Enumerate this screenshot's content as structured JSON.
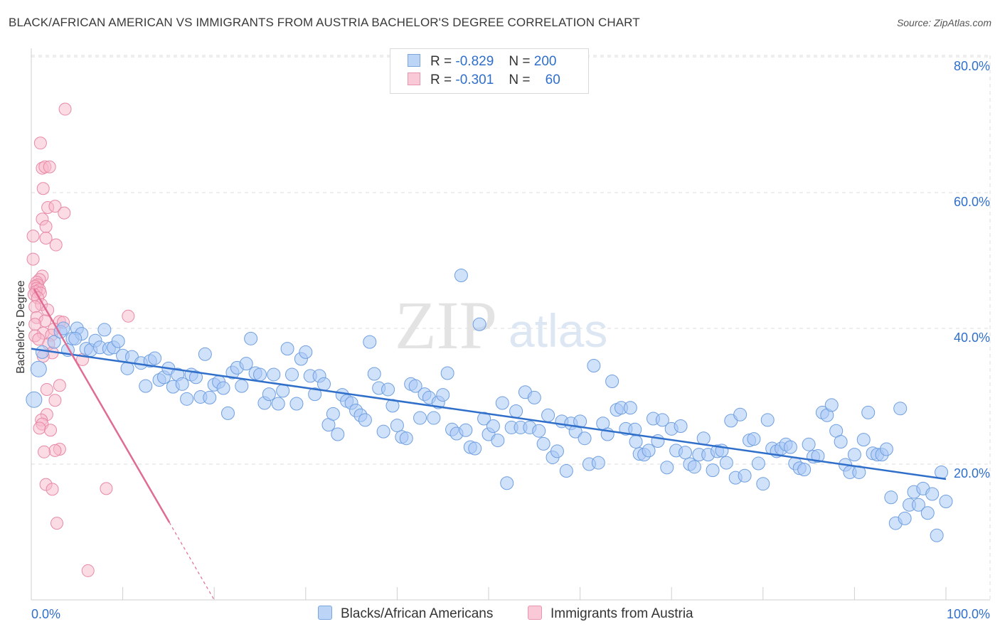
{
  "title": "BLACK/AFRICAN AMERICAN VS IMMIGRANTS FROM AUSTRIA BACHELOR'S DEGREE CORRELATION CHART",
  "source": "Source: ZipAtlas.com",
  "watermark": {
    "zip": "ZIP",
    "atlas": "atlas"
  },
  "legend": {
    "rows": [
      {
        "r_label": "R =",
        "r_value": "-0.829",
        "n_label": "N =",
        "n_value": "200",
        "color": "#a9c9f5"
      },
      {
        "r_label": "R =",
        "r_value": "-0.301",
        "n_label": "N =",
        "n_value": "60",
        "color": "#f7b7c9"
      }
    ]
  },
  "bottom_legend": [
    "Blacks/African Americans",
    "Immigrants from Austria"
  ],
  "colors": {
    "blue_fill": "#a9c9f5",
    "blue_stroke": "#6f9fdf",
    "blue_line": "#2f6fca",
    "pink_fill": "#f7b7c9",
    "pink_stroke": "#e889a6",
    "pink_line": "#e06c93",
    "grid": "#dddddd",
    "axis_text": "#2f6fca"
  },
  "chart_data": {
    "type": "scatter",
    "title": "BLACK/AFRICAN AMERICAN VS IMMIGRANTS FROM AUSTRIA BACHELOR'S DEGREE CORRELATION CHART",
    "xlabel": "",
    "ylabel": "Bachelor's Degree",
    "xlim": [
      0,
      100
    ],
    "ylim": [
      0,
      82
    ],
    "x_tick_labels": [
      "0.0%",
      "100.0%"
    ],
    "y_ticks": [
      20,
      40,
      60,
      80
    ],
    "y_tick_labels": [
      "20.0%",
      "40.0%",
      "60.0%",
      "80.0%"
    ],
    "grid": true,
    "legend_position": "top-center",
    "series": [
      {
        "name": "Blacks/African Americans",
        "color": "#a9c9f5",
        "r": -0.829,
        "n": 200,
        "trend": {
          "x": [
            0,
            100
          ],
          "y": [
            37.0,
            17.8
          ]
        },
        "points": [
          [
            0.3,
            29.5
          ],
          [
            0.8,
            34
          ],
          [
            1.2,
            36.5
          ],
          [
            2.5,
            38
          ],
          [
            3.2,
            39.5
          ],
          [
            3.5,
            40
          ],
          [
            4,
            36.8
          ],
          [
            4.5,
            38.5
          ],
          [
            5,
            40
          ],
          [
            5.5,
            39.2
          ],
          [
            6,
            37
          ],
          [
            6.5,
            36.8
          ],
          [
            7,
            38.2
          ],
          [
            7.5,
            37.2
          ],
          [
            8,
            39.8
          ],
          [
            8.5,
            37
          ],
          [
            9,
            37.2
          ],
          [
            9.5,
            38.1
          ],
          [
            10,
            36
          ],
          [
            10.5,
            34.1
          ],
          [
            11,
            35.8
          ],
          [
            12,
            34.9
          ],
          [
            12.5,
            31.5
          ],
          [
            13,
            35.2
          ],
          [
            13.5,
            35.6
          ],
          [
            14,
            32.4
          ],
          [
            14.5,
            32.8
          ],
          [
            15,
            34.1
          ],
          [
            15.5,
            31.4
          ],
          [
            16,
            33.2
          ],
          [
            16.5,
            31.8
          ],
          [
            17,
            29.6
          ],
          [
            17.5,
            33.2
          ],
          [
            18,
            32.8
          ],
          [
            18.5,
            29.9
          ],
          [
            19,
            36.2
          ],
          [
            19.5,
            29.8
          ],
          [
            20,
            31.7
          ],
          [
            20.5,
            32.1
          ],
          [
            21,
            31.2
          ],
          [
            21.5,
            27.5
          ],
          [
            22,
            33.5
          ],
          [
            22.5,
            34.2
          ],
          [
            23,
            31.5
          ],
          [
            23.5,
            34.8
          ],
          [
            24,
            38.5
          ],
          [
            24.5,
            33.4
          ],
          [
            25,
            33.2
          ],
          [
            25.5,
            29
          ],
          [
            26,
            30.3
          ],
          [
            26.5,
            33.2
          ],
          [
            27,
            28.9
          ],
          [
            27.5,
            30.8
          ],
          [
            28,
            37
          ],
          [
            28.5,
            33.2
          ],
          [
            29,
            28.9
          ],
          [
            29.5,
            35.5
          ],
          [
            30,
            36.5
          ],
          [
            30.5,
            33
          ],
          [
            31,
            30.3
          ],
          [
            31.5,
            33
          ],
          [
            32,
            31.8
          ],
          [
            32.5,
            25.8
          ],
          [
            33,
            27.4
          ],
          [
            33.5,
            24.4
          ],
          [
            34,
            30.2
          ],
          [
            34.5,
            29.3
          ],
          [
            35,
            29
          ],
          [
            35.5,
            27.9
          ],
          [
            36,
            27.2
          ],
          [
            36.5,
            26.5
          ],
          [
            37,
            38
          ],
          [
            37.5,
            33.3
          ],
          [
            38,
            31.2
          ],
          [
            38.5,
            24.8
          ],
          [
            39,
            31
          ],
          [
            39.5,
            28.6
          ],
          [
            40,
            25.7
          ],
          [
            40.5,
            24
          ],
          [
            41,
            23.8
          ],
          [
            41.5,
            31.8
          ],
          [
            42,
            31.5
          ],
          [
            42.5,
            26.8
          ],
          [
            43,
            30.3
          ],
          [
            43.5,
            29.8
          ],
          [
            44,
            26.8
          ],
          [
            44.5,
            29.1
          ],
          [
            45,
            30.2
          ],
          [
            45.5,
            33.4
          ],
          [
            46,
            25.1
          ],
          [
            46.5,
            24.5
          ],
          [
            47,
            47.8
          ],
          [
            47.5,
            25
          ],
          [
            48,
            22.5
          ],
          [
            48.5,
            22.3
          ],
          [
            49,
            40.6
          ],
          [
            49.5,
            26.7
          ],
          [
            50,
            24.4
          ],
          [
            50.5,
            25.6
          ],
          [
            51,
            23.5
          ],
          [
            51.5,
            29
          ],
          [
            52,
            17.2
          ],
          [
            52.5,
            25.4
          ],
          [
            53,
            27.8
          ],
          [
            53.5,
            25.4
          ],
          [
            54,
            30.6
          ],
          [
            54.5,
            25.4
          ],
          [
            55,
            29.8
          ],
          [
            55.5,
            24.9
          ],
          [
            56,
            23
          ],
          [
            56.5,
            27.2
          ],
          [
            57,
            21
          ],
          [
            57.5,
            21.9
          ],
          [
            58,
            26.3
          ],
          [
            58.5,
            19
          ],
          [
            59,
            26
          ],
          [
            59.5,
            24.8
          ],
          [
            60,
            26.3
          ],
          [
            60.5,
            23.8
          ],
          [
            61,
            20
          ],
          [
            61.5,
            34.5
          ],
          [
            62,
            20.2
          ],
          [
            62.5,
            26
          ],
          [
            63,
            24.4
          ],
          [
            63.5,
            32.2
          ],
          [
            64,
            28
          ],
          [
            64.5,
            28.3
          ],
          [
            65,
            25.2
          ],
          [
            65.5,
            28.3
          ],
          [
            66,
            25.1
          ],
          [
            66.5,
            21.5
          ],
          [
            67,
            21.4
          ],
          [
            67.5,
            22
          ],
          [
            68,
            26.7
          ],
          [
            68.5,
            23.4
          ],
          [
            69,
            26.5
          ],
          [
            69.5,
            19.5
          ],
          [
            70,
            25.2
          ],
          [
            70.5,
            22
          ],
          [
            71,
            25.6
          ],
          [
            71.5,
            21.7
          ],
          [
            72,
            20
          ],
          [
            72.5,
            19.6
          ],
          [
            73,
            21.4
          ],
          [
            73.5,
            23.8
          ],
          [
            74,
            21.4
          ],
          [
            74.5,
            19.1
          ],
          [
            75,
            21.9
          ],
          [
            75.5,
            22
          ],
          [
            76,
            20.2
          ],
          [
            76.5,
            26.4
          ],
          [
            77,
            18
          ],
          [
            77.5,
            27.3
          ],
          [
            78,
            18.3
          ],
          [
            78.5,
            23.5
          ],
          [
            79,
            23.7
          ],
          [
            79.5,
            20.1
          ],
          [
            80,
            17.1
          ],
          [
            80.5,
            26.5
          ],
          [
            81,
            22.3
          ],
          [
            81.5,
            21.9
          ],
          [
            82,
            22.3
          ],
          [
            82.5,
            22.9
          ],
          [
            83,
            22.5
          ],
          [
            83.5,
            20.1
          ],
          [
            84,
            19.4
          ],
          [
            84.5,
            19.2
          ],
          [
            85,
            22.9
          ],
          [
            85.5,
            21.1
          ],
          [
            86,
            21.2
          ],
          [
            86.5,
            27.6
          ],
          [
            87,
            27.2
          ],
          [
            87.5,
            28.7
          ],
          [
            88,
            24.9
          ],
          [
            88.5,
            23.3
          ],
          [
            89,
            19.9
          ],
          [
            89.5,
            18.8
          ],
          [
            90,
            21.4
          ],
          [
            90.5,
            18.8
          ],
          [
            91,
            23.6
          ],
          [
            91.5,
            27.6
          ],
          [
            92,
            21.6
          ],
          [
            92.5,
            21.4
          ],
          [
            93,
            21.4
          ],
          [
            93.5,
            22.2
          ],
          [
            94,
            15.1
          ],
          [
            94.5,
            11.3
          ],
          [
            95,
            28.2
          ],
          [
            95.5,
            12
          ],
          [
            96,
            14
          ],
          [
            96.5,
            15.9
          ],
          [
            97,
            14
          ],
          [
            97.5,
            16.4
          ],
          [
            98,
            12.8
          ],
          [
            98.5,
            15.6
          ],
          [
            99,
            9.5
          ],
          [
            99.5,
            18.8
          ],
          [
            100,
            14.5
          ],
          [
            4.8,
            38.5
          ],
          [
            66.1,
            23.3
          ]
        ]
      },
      {
        "name": "Immigrants from Austria",
        "color": "#f7b7c9",
        "r": -0.301,
        "n": 60,
        "trend": {
          "x": [
            0.3,
            15.1,
            20
          ],
          "y": [
            45.8,
            11.4,
            0.0
          ]
        },
        "points": [
          [
            3.7,
            72.3
          ],
          [
            1.0,
            67.3
          ],
          [
            1.2,
            63.6
          ],
          [
            1.5,
            63.8
          ],
          [
            2.0,
            63.8
          ],
          [
            1.3,
            60.6
          ],
          [
            1.8,
            57.8
          ],
          [
            2.6,
            58
          ],
          [
            3.6,
            57
          ],
          [
            1.2,
            56.1
          ],
          [
            1.6,
            55
          ],
          [
            0.2,
            53.6
          ],
          [
            1.6,
            53.3
          ],
          [
            2.7,
            52.3
          ],
          [
            0.2,
            50.2
          ],
          [
            1.2,
            47.7
          ],
          [
            0.9,
            47.2
          ],
          [
            0.6,
            46.8
          ],
          [
            0.7,
            46.4
          ],
          [
            0.4,
            46.2
          ],
          [
            0.6,
            45.9
          ],
          [
            0.9,
            45.7
          ],
          [
            0.5,
            45.4
          ],
          [
            1.0,
            45.2
          ],
          [
            0.3,
            45.0
          ],
          [
            0.7,
            44.5
          ],
          [
            1.1,
            43.5
          ],
          [
            0.4,
            43.2
          ],
          [
            1.8,
            42.7
          ],
          [
            10.6,
            41.8
          ],
          [
            0.6,
            41.6
          ],
          [
            1.5,
            41.1
          ],
          [
            3.1,
            41.0
          ],
          [
            3.5,
            40.9
          ],
          [
            0.4,
            40.6
          ],
          [
            2.5,
            39.9
          ],
          [
            1.3,
            39.3
          ],
          [
            2.2,
            39.0
          ],
          [
            0.4,
            38.9
          ],
          [
            0.8,
            38.4
          ],
          [
            1.9,
            37.7
          ],
          [
            2.3,
            36.4
          ],
          [
            1.3,
            35.9
          ],
          [
            5.6,
            35.4
          ],
          [
            3.1,
            31.6
          ],
          [
            1.7,
            31.0
          ],
          [
            2.6,
            29.4
          ],
          [
            1.7,
            27.3
          ],
          [
            1.1,
            26.5
          ],
          [
            1.2,
            25.9
          ],
          [
            0.9,
            25.3
          ],
          [
            2.1,
            25.0
          ],
          [
            3.1,
            22.2
          ],
          [
            2.6,
            22.0
          ],
          [
            1.4,
            21.8
          ],
          [
            1.6,
            17.0
          ],
          [
            2.3,
            16.3
          ],
          [
            8.2,
            16.4
          ],
          [
            2.8,
            11.3
          ],
          [
            6.2,
            4.3
          ]
        ]
      }
    ]
  }
}
